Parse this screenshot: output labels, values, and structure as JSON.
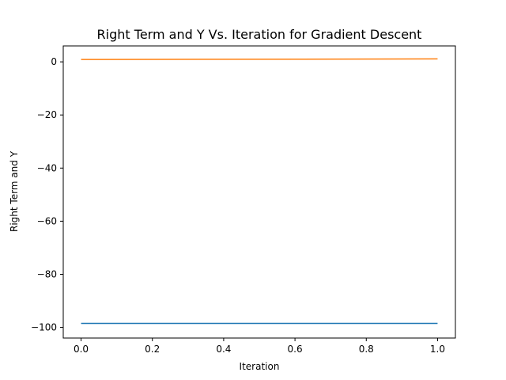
{
  "chart_data": {
    "type": "line",
    "title": "Right Term and Y Vs. Iteration for Gradient Descent",
    "xlabel": "Iteration",
    "ylabel": "Right Term and Y",
    "xlim": [
      -0.05,
      1.05
    ],
    "ylim": [
      -104,
      6
    ],
    "xticks": [
      0.0,
      0.2,
      0.4,
      0.6,
      0.8,
      1.0
    ],
    "xtick_labels": [
      "0.0",
      "0.2",
      "0.4",
      "0.6",
      "0.8",
      "1.0"
    ],
    "yticks": [
      0,
      -20,
      -40,
      -60,
      -80,
      -100
    ],
    "ytick_labels": [
      "0",
      "−20",
      "−40",
      "−60",
      "−80",
      "−100"
    ],
    "grid": false,
    "series": [
      {
        "color": "#1f77b4",
        "x": [
          0,
          1
        ],
        "values": [
          -98.5,
          -98.5
        ]
      },
      {
        "color": "#ff7f0e",
        "x": [
          0,
          1
        ],
        "values": [
          0.9,
          1.1
        ]
      }
    ]
  }
}
